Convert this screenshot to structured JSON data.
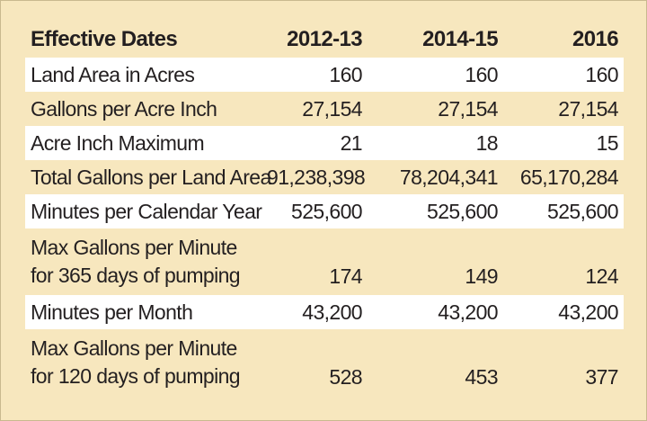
{
  "table": {
    "header": {
      "label": "Effective Dates",
      "periods": [
        "2012-13",
        "2014-15",
        "2016"
      ]
    },
    "rows": [
      {
        "label": "Land Area in Acres",
        "values": [
          "160",
          "160",
          "160"
        ]
      },
      {
        "label": "Gallons per Acre Inch",
        "values": [
          "27,154",
          "27,154",
          "27,154"
        ]
      },
      {
        "label": "Acre Inch Maximum",
        "values": [
          "21",
          "18",
          "15"
        ]
      },
      {
        "label": "Total Gallons per Land Area",
        "values": [
          "91,238,398",
          "78,204,341",
          "65,170,284"
        ]
      },
      {
        "label": "Minutes per Calendar Year",
        "values": [
          "525,600",
          "525,600",
          "525,600"
        ]
      },
      {
        "label": "Max Gallons per Minute for 365 days of pumping",
        "values": [
          "174",
          "149",
          "124"
        ]
      },
      {
        "label": "Minutes per Month",
        "values": [
          "43,200",
          "43,200",
          "43,200"
        ]
      },
      {
        "label": "Max Gallons per Minute for 120 days of pumping",
        "values": [
          "528",
          "453",
          "377"
        ]
      }
    ]
  },
  "colors": {
    "background": "#f7e7be",
    "row_shade": "#ffffff",
    "text": "#231f20"
  }
}
